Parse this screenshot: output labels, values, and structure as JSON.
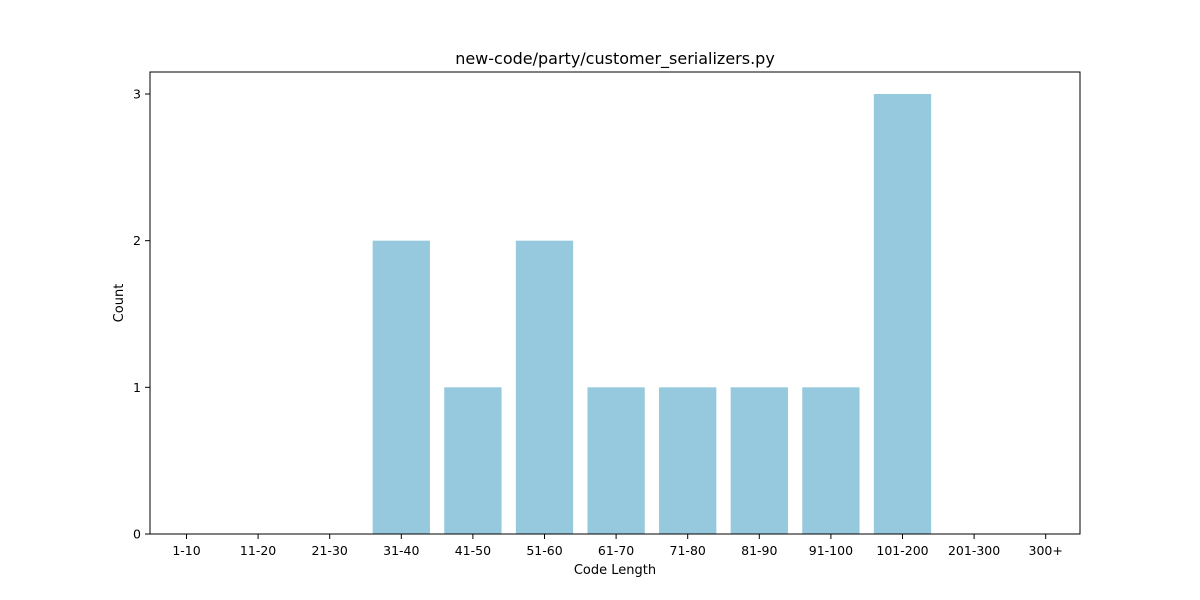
{
  "chart_data": {
    "type": "bar",
    "title": "new-code/party/customer_serializers.py",
    "xlabel": "Code Length",
    "ylabel": "Count",
    "categories": [
      "1-10",
      "11-20",
      "21-30",
      "31-40",
      "41-50",
      "51-60",
      "61-70",
      "71-80",
      "81-90",
      "91-100",
      "101-200",
      "201-300",
      "300+"
    ],
    "values": [
      0,
      0,
      0,
      2,
      1,
      2,
      1,
      1,
      1,
      1,
      3,
      0,
      0
    ],
    "ylim": [
      0,
      3.15
    ],
    "yticks": [
      0,
      1,
      2,
      3
    ],
    "bar_color": "#96c9dd",
    "grid": false,
    "legend": "none"
  }
}
